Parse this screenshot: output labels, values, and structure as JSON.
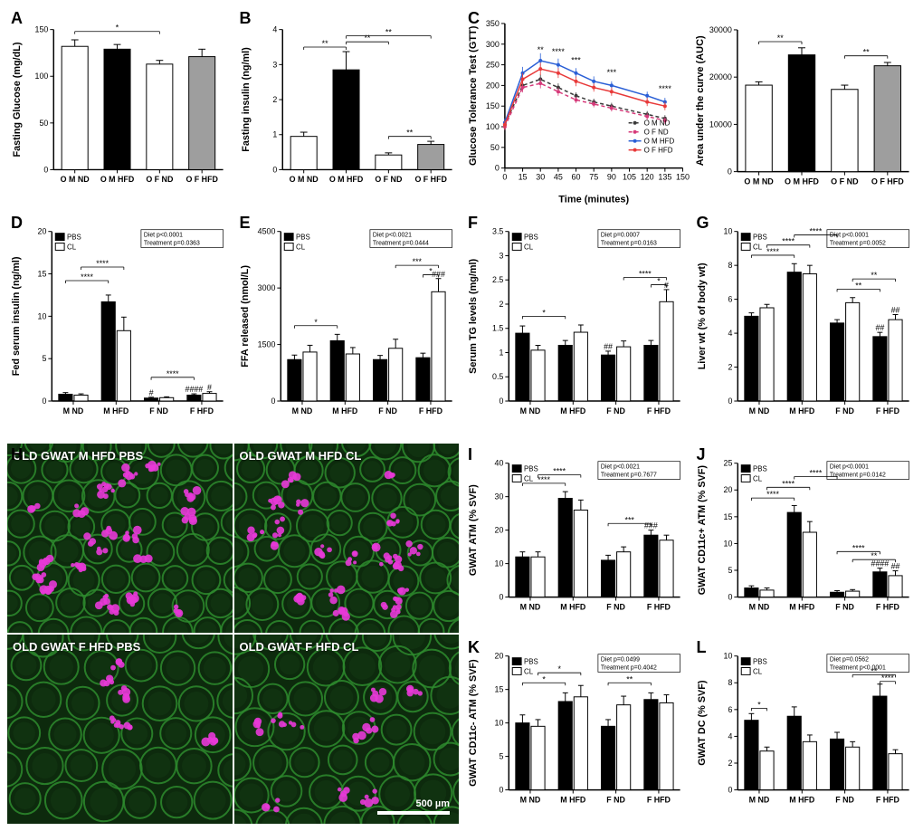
{
  "colors": {
    "white_bar": "#ffffff",
    "black_bar": "#000000",
    "gray_bar": "#9e9e9e",
    "axis": "#000000",
    "line_OM_ND": "#3a3a3a",
    "line_OF_ND": "#d63a7a",
    "line_OM_HFD": "#2a5fd6",
    "line_OF_HFD": "#e83a3a"
  },
  "panelA": {
    "label": "A",
    "type": "bar",
    "ylabel": "Fasting Glucose (mg/dL)",
    "ylim": [
      0,
      150
    ],
    "ytick_step": 50,
    "categories": [
      "O M ND",
      "O M HFD",
      "O F ND",
      "O F HFD"
    ],
    "values": [
      132,
      129,
      113,
      121
    ],
    "errors": [
      7,
      5,
      4,
      8
    ],
    "fills": [
      "#ffffff",
      "#000000",
      "#ffffff",
      "#9e9e9e"
    ],
    "sig": [
      {
        "from": 0,
        "to": 2,
        "label": "*",
        "y": 148
      }
    ]
  },
  "panelB": {
    "label": "B",
    "type": "bar",
    "ylabel": "Fasting insulin (ng/ml)",
    "ylim": [
      0,
      4
    ],
    "ytick_step": 1,
    "categories": [
      "O M ND",
      "O M HFD",
      "O F ND",
      "O F HFD"
    ],
    "values": [
      0.95,
      2.85,
      0.42,
      0.72
    ],
    "errors": [
      0.12,
      0.52,
      0.06,
      0.09
    ],
    "fills": [
      "#ffffff",
      "#000000",
      "#ffffff",
      "#9e9e9e"
    ],
    "sig": [
      {
        "from": 0,
        "to": 1,
        "label": "**",
        "y": 3.5
      },
      {
        "from": 1,
        "to": 2,
        "label": "**",
        "y": 3.65
      },
      {
        "from": 1,
        "to": 3,
        "label": "**",
        "y": 3.82
      },
      {
        "from": 2,
        "to": 3,
        "label": "**",
        "y": 0.95
      }
    ]
  },
  "panelC_line": {
    "label": "C",
    "type": "line",
    "ylabel": "Glucose Tolerance Test (GTT)",
    "xlabel": "Time (minutes)",
    "xlim": [
      0,
      150
    ],
    "xtick_step": 15,
    "ylim": [
      0,
      350
    ],
    "ytick_step": 50,
    "x": [
      0,
      15,
      30,
      45,
      60,
      75,
      90,
      120,
      135
    ],
    "series": [
      {
        "name": "O M ND",
        "color": "#3a3a3a",
        "dash": "4,3",
        "values": [
          105,
          200,
          215,
          195,
          175,
          160,
          150,
          130,
          120
        ],
        "err": [
          8,
          12,
          12,
          10,
          8,
          8,
          8,
          8,
          8
        ]
      },
      {
        "name": "O F ND",
        "color": "#d63a7a",
        "dash": "4,3",
        "values": [
          100,
          195,
          205,
          185,
          165,
          155,
          145,
          125,
          115
        ],
        "err": [
          8,
          12,
          12,
          10,
          8,
          8,
          8,
          8,
          8
        ]
      },
      {
        "name": "O M HFD",
        "color": "#2a5fd6",
        "dash": "",
        "values": [
          110,
          230,
          260,
          250,
          230,
          210,
          200,
          175,
          160
        ],
        "err": [
          10,
          15,
          18,
          15,
          12,
          12,
          10,
          10,
          10
        ]
      },
      {
        "name": "O F HFD",
        "color": "#e83a3a",
        "dash": "",
        "values": [
          105,
          215,
          240,
          230,
          210,
          195,
          185,
          160,
          150
        ],
        "err": [
          10,
          15,
          15,
          12,
          12,
          10,
          10,
          10,
          10
        ]
      }
    ],
    "sig_points": [
      {
        "x": 30,
        "label": "**",
        "y": 280
      },
      {
        "x": 45,
        "label": "****",
        "y": 275
      },
      {
        "x": 60,
        "label": "***",
        "y": 255
      },
      {
        "x": 90,
        "label": "***",
        "y": 225
      },
      {
        "x": 135,
        "label": "****",
        "y": 185
      }
    ],
    "legend": [
      "O M ND",
      "O F ND",
      "O M HFD",
      "O F HFD"
    ]
  },
  "panelC_bar": {
    "type": "bar",
    "ylabel": "Area under the curve (AUC)",
    "ylim": [
      0,
      30000
    ],
    "ytick_step": 10000,
    "categories": [
      "O M ND",
      "O M HFD",
      "O F ND",
      "O F HFD"
    ],
    "values": [
      18300,
      24700,
      17400,
      22400
    ],
    "errors": [
      700,
      1500,
      900,
      700
    ],
    "fills": [
      "#ffffff",
      "#000000",
      "#ffffff",
      "#9e9e9e"
    ],
    "sig": [
      {
        "from": 0,
        "to": 1,
        "label": "**",
        "y": 27500
      },
      {
        "from": 2,
        "to": 3,
        "label": "**",
        "y": 24500
      }
    ]
  },
  "panelD": {
    "label": "D",
    "type": "grouped-bar",
    "ylabel": "Fed serum insulin (ng/ml)",
    "ylim": [
      0,
      20
    ],
    "ytick_step": 5,
    "groups": [
      "M ND",
      "M HFD",
      "F ND",
      "F HFD"
    ],
    "series_names": [
      "PBS",
      "CL"
    ],
    "series_fills": [
      "#000000",
      "#ffffff"
    ],
    "values": [
      [
        0.8,
        0.7
      ],
      [
        11.7,
        8.3
      ],
      [
        0.35,
        0.4
      ],
      [
        0.7,
        0.9
      ]
    ],
    "errors": [
      [
        0.2,
        0.15
      ],
      [
        0.8,
        1.6
      ],
      [
        0.1,
        0.1
      ],
      [
        0.15,
        0.2
      ]
    ],
    "stat": [
      "Diet p<0.0001",
      "Treatment p=0.0363"
    ],
    "sig": [
      {
        "from": [
          0,
          0
        ],
        "to": [
          1,
          0
        ],
        "label": "****",
        "y": 14.2
      },
      {
        "from": [
          0,
          1
        ],
        "to": [
          1,
          1
        ],
        "label": "****",
        "y": 15.8
      },
      {
        "from": [
          2,
          0
        ],
        "to": [
          3,
          0
        ],
        "label": "****",
        "y": 2.8
      }
    ],
    "hash": [
      {
        "g": 2,
        "s": 0,
        "label": "#"
      },
      {
        "g": 3,
        "s": 0,
        "label": "####"
      },
      {
        "g": 3,
        "s": 1,
        "label": "#"
      }
    ]
  },
  "panelE": {
    "label": "E",
    "type": "grouped-bar",
    "ylabel": "FFA released (nmol/L)",
    "ylim": [
      0,
      4500
    ],
    "ytick_step": 1500,
    "groups": [
      "M ND",
      "M HFD",
      "F ND",
      "F HFD"
    ],
    "series_names": [
      "PBS",
      "CL"
    ],
    "series_fills": [
      "#000000",
      "#ffffff"
    ],
    "values": [
      [
        1100,
        1300
      ],
      [
        1600,
        1250
      ],
      [
        1100,
        1400
      ],
      [
        1150,
        2900
      ]
    ],
    "errors": [
      [
        120,
        180
      ],
      [
        170,
        170
      ],
      [
        110,
        240
      ],
      [
        120,
        350
      ]
    ],
    "stat": [
      "Diet p<0.0021",
      "Treatment p=0.0444"
    ],
    "sig": [
      {
        "from": [
          0,
          0
        ],
        "to": [
          1,
          0
        ],
        "label": "*",
        "y": 2000
      },
      {
        "from": [
          2,
          1
        ],
        "to": [
          3,
          1
        ],
        "label": "***",
        "y": 3600
      },
      {
        "from": [
          3,
          0
        ],
        "to": [
          3,
          1
        ],
        "label": "*",
        "y": 3350
      }
    ],
    "hash": [
      {
        "g": 3,
        "s": 1,
        "label": "###"
      }
    ]
  },
  "panelF": {
    "label": "F",
    "type": "grouped-bar",
    "ylabel": "Serum TG levels (mg/ml)",
    "ylim": [
      0,
      3.5
    ],
    "ytick_step": 0.5,
    "groups": [
      "M ND",
      "M HFD",
      "F ND",
      "F HFD"
    ],
    "series_names": [
      "PBS",
      "CL"
    ],
    "series_fills": [
      "#000000",
      "#ffffff"
    ],
    "values": [
      [
        1.4,
        1.05
      ],
      [
        1.15,
        1.42
      ],
      [
        0.95,
        1.12
      ],
      [
        1.15,
        2.05
      ]
    ],
    "errors": [
      [
        0.15,
        0.1
      ],
      [
        0.1,
        0.15
      ],
      [
        0.08,
        0.12
      ],
      [
        0.1,
        0.25
      ]
    ],
    "stat": [
      "Diet p=0.0007",
      "Treatment p=0.0163"
    ],
    "sig": [
      {
        "from": [
          0,
          0
        ],
        "to": [
          1,
          0
        ],
        "label": "*",
        "y": 1.75
      },
      {
        "from": [
          2,
          1
        ],
        "to": [
          3,
          1
        ],
        "label": "****",
        "y": 2.55
      },
      {
        "from": [
          3,
          0
        ],
        "to": [
          3,
          1
        ],
        "label": "*",
        "y": 2.4
      }
    ],
    "hash": [
      {
        "g": 2,
        "s": 0,
        "label": "##"
      },
      {
        "g": 3,
        "s": 1,
        "label": "#"
      }
    ]
  },
  "panelG": {
    "label": "G",
    "type": "grouped-bar",
    "ylabel": "Liver wt (% of body wt)",
    "ylim": [
      0,
      10
    ],
    "ytick_step": 2,
    "groups": [
      "M ND",
      "M HFD",
      "F ND",
      "F HFD"
    ],
    "series_names": [
      "PBS",
      "CL"
    ],
    "series_fills": [
      "#000000",
      "#ffffff"
    ],
    "values": [
      [
        5.0,
        5.5
      ],
      [
        7.6,
        7.5
      ],
      [
        4.6,
        5.8
      ],
      [
        3.8,
        4.8
      ]
    ],
    "errors": [
      [
        0.2,
        0.2
      ],
      [
        0.5,
        0.5
      ],
      [
        0.2,
        0.3
      ],
      [
        0.25,
        0.3
      ]
    ],
    "stat": [
      "Diet p<0.0001",
      "Treatment p=0.0052"
    ],
    "sig": [
      {
        "from": [
          0,
          0
        ],
        "to": [
          1,
          0
        ],
        "label": "****",
        "y": 8.6
      },
      {
        "from": [
          0,
          1
        ],
        "to": [
          1,
          1
        ],
        "label": "****",
        "y": 9.2
      },
      {
        "from": [
          2,
          0
        ],
        "to": [
          3,
          0
        ],
        "label": "**",
        "y": 6.6
      },
      {
        "from": [
          2,
          1
        ],
        "to": [
          3,
          1
        ],
        "label": "**",
        "y": 7.2
      },
      {
        "from": [
          1,
          0
        ],
        "to": [
          2,
          0
        ],
        "label": "****",
        "y": 9.8
      }
    ],
    "hash": [
      {
        "g": 3,
        "s": 0,
        "label": "##"
      },
      {
        "g": 3,
        "s": 1,
        "label": "##"
      }
    ]
  },
  "panelH": {
    "label": "H",
    "images": [
      {
        "label": "OLD GWAT M HFD PBS",
        "spots": 22,
        "cell": 34
      },
      {
        "label": "OLD GWAT M HFD CL",
        "spots": 20,
        "cell": 34
      },
      {
        "label": "OLD GWAT F HFD PBS",
        "spots": 6,
        "cell": 42
      },
      {
        "label": "OLD GWAT F HFD CL",
        "spots": 10,
        "cell": 40
      }
    ],
    "scale_label": "500 µm"
  },
  "panelI": {
    "label": "I",
    "type": "grouped-bar",
    "ylabel": "GWAT ATM (% SVF)",
    "ylim": [
      0,
      40
    ],
    "ytick_step": 10,
    "groups": [
      "M ND",
      "M HFD",
      "F ND",
      "F HFD"
    ],
    "series_names": [
      "PBS",
      "CL"
    ],
    "series_fills": [
      "#000000",
      "#ffffff"
    ],
    "values": [
      [
        12,
        12
      ],
      [
        29.5,
        26
      ],
      [
        11,
        13.5
      ],
      [
        18.5,
        17
      ]
    ],
    "errors": [
      [
        1.5,
        1.5
      ],
      [
        2,
        3
      ],
      [
        1.5,
        1.5
      ],
      [
        1.5,
        1.5
      ]
    ],
    "stat": [
      "Diet p<0.0021",
      "Treatment p=0.7677"
    ],
    "sig": [
      {
        "from": [
          0,
          0
        ],
        "to": [
          1,
          0
        ],
        "label": "****",
        "y": 34
      },
      {
        "from": [
          0,
          1
        ],
        "to": [
          1,
          1
        ],
        "label": "****",
        "y": 36.5
      },
      {
        "from": [
          2,
          0
        ],
        "to": [
          3,
          0
        ],
        "label": "***",
        "y": 22
      }
    ],
    "hash": [
      {
        "g": 3,
        "s": 0,
        "label": "###"
      }
    ]
  },
  "panelJ": {
    "label": "J",
    "type": "grouped-bar",
    "ylabel": "GWAT CD11c+ ATM (% SVF)",
    "ylim": [
      0,
      25
    ],
    "ytick_step": 5,
    "groups": [
      "M ND",
      "M HFD",
      "F ND",
      "F HFD"
    ],
    "series_names": [
      "PBS",
      "CL"
    ],
    "series_fills": [
      "#000000",
      "#ffffff"
    ],
    "values": [
      [
        1.7,
        1.3
      ],
      [
        15.8,
        12.1
      ],
      [
        0.9,
        1.1
      ],
      [
        4.7,
        4.0
      ]
    ],
    "errors": [
      [
        0.4,
        0.4
      ],
      [
        1.3,
        2.0
      ],
      [
        0.3,
        0.3
      ],
      [
        0.7,
        0.9
      ]
    ],
    "stat": [
      "Diet p<0.0001",
      "Treatment p=0.0142"
    ],
    "sig": [
      {
        "from": [
          0,
          0
        ],
        "to": [
          1,
          0
        ],
        "label": "****",
        "y": 18.5
      },
      {
        "from": [
          0,
          1
        ],
        "to": [
          1,
          1
        ],
        "label": "****",
        "y": 20.5
      },
      {
        "from": [
          2,
          1
        ],
        "to": [
          3,
          1
        ],
        "label": "**",
        "y": 7
      },
      {
        "from": [
          2,
          0
        ],
        "to": [
          3,
          0
        ],
        "label": "****",
        "y": 8.5
      },
      {
        "from": [
          1,
          0
        ],
        "to": [
          2,
          0
        ],
        "label": "****",
        "y": 22.5
      }
    ],
    "hash": [
      {
        "g": 3,
        "s": 0,
        "label": "####"
      },
      {
        "g": 3,
        "s": 1,
        "label": "##"
      }
    ]
  },
  "panelK": {
    "label": "K",
    "type": "grouped-bar",
    "ylabel": "GWAT CD11c- ATM (% SVF)",
    "ylim": [
      0,
      20
    ],
    "ytick_step": 5,
    "groups": [
      "M ND",
      "M HFD",
      "F ND",
      "F HFD"
    ],
    "series_names": [
      "PBS",
      "CL"
    ],
    "series_fills": [
      "#000000",
      "#ffffff"
    ],
    "values": [
      [
        10,
        9.5
      ],
      [
        13.2,
        13.9
      ],
      [
        9.5,
        12.7
      ],
      [
        13.5,
        13.0
      ]
    ],
    "errors": [
      [
        1.2,
        1.0
      ],
      [
        1.3,
        1.7
      ],
      [
        1.0,
        1.3
      ],
      [
        1.0,
        1.2
      ]
    ],
    "stat": [
      "Diet p=0.0499",
      "Treatment p=0.4042"
    ],
    "sig": [
      {
        "from": [
          0,
          0
        ],
        "to": [
          1,
          0
        ],
        "label": "*",
        "y": 16
      },
      {
        "from": [
          0,
          1
        ],
        "to": [
          1,
          1
        ],
        "label": "*",
        "y": 17.5
      },
      {
        "from": [
          2,
          0
        ],
        "to": [
          3,
          0
        ],
        "label": "**",
        "y": 16
      }
    ]
  },
  "panelL": {
    "label": "L",
    "type": "grouped-bar",
    "ylabel": "GWAT DC (% SVF)",
    "ylim": [
      0,
      10
    ],
    "ytick_step": 2,
    "groups": [
      "M ND",
      "M HFD",
      "F ND",
      "F HFD"
    ],
    "series_names": [
      "PBS",
      "CL"
    ],
    "series_fills": [
      "#000000",
      "#ffffff"
    ],
    "values": [
      [
        5.2,
        2.9
      ],
      [
        5.5,
        3.6
      ],
      [
        3.8,
        3.2
      ],
      [
        7.0,
        2.7
      ]
    ],
    "errors": [
      [
        0.5,
        0.3
      ],
      [
        0.7,
        0.5
      ],
      [
        0.5,
        0.4
      ],
      [
        0.9,
        0.3
      ]
    ],
    "stat": [
      "Diet p=0.0562",
      "Treatment p<0.0001"
    ],
    "sig": [
      {
        "from": [
          0,
          0
        ],
        "to": [
          0,
          1
        ],
        "label": "*",
        "y": 6.1
      },
      {
        "from": [
          2,
          1
        ],
        "to": [
          3,
          1
        ],
        "label": "**",
        "y": 8.6
      },
      {
        "from": [
          3,
          0
        ],
        "to": [
          3,
          1
        ],
        "label": "****",
        "y": 8.1
      }
    ]
  }
}
